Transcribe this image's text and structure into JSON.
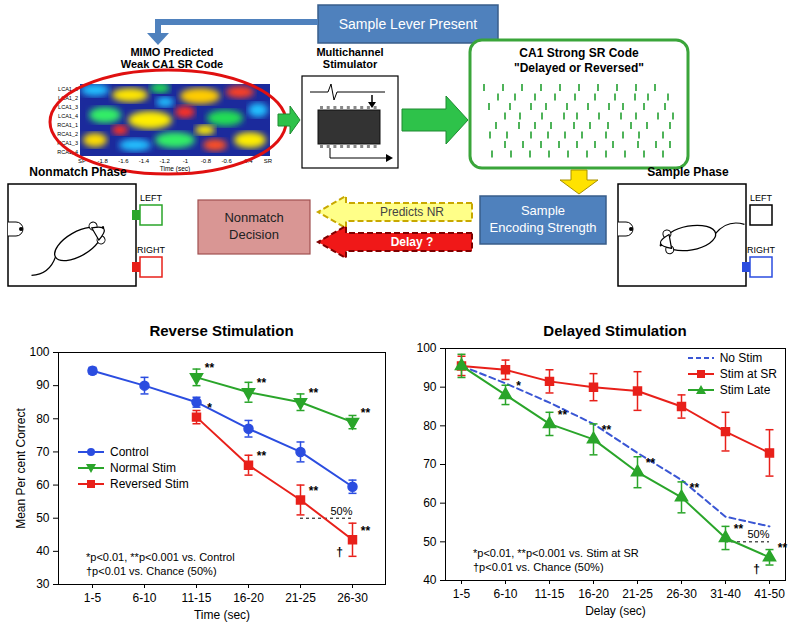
{
  "diagram": {
    "sample_lever": "Sample Lever Present",
    "heatmap": {
      "title_lines": [
        "MIMO Predicted",
        "Weak CA1 SR Code"
      ],
      "row_labels": [
        "LCA1_1",
        "LCA1_2",
        "LCA1_3",
        "LCA1_4",
        "RCA1_1",
        "RCA1_2",
        "RCA1_3",
        "RCA1_4"
      ],
      "x_labels": [
        "SP",
        "-1.8",
        "-1.6",
        "-1.4",
        "-1.2",
        "-1",
        "-0.8",
        "-0.6",
        "-0.4",
        "SR"
      ],
      "x_axis_label": "Time (sec)"
    },
    "stimulator_lines": [
      "Multichannel",
      "Stimulator"
    ],
    "strong_code_lines": [
      "CA1 Strong  SR Code",
      "\"Delayed or Reversed\""
    ],
    "encoding_lines": [
      "Sample",
      "Encoding Strength"
    ],
    "arrows": [
      "Predicts NR",
      "Delay ?"
    ],
    "decision_lines": [
      "Nonmatch",
      "Decision"
    ],
    "nonmatch_phase": {
      "title": "Nonmatch Phase",
      "levers": [
        "LEFT",
        "RIGHT"
      ]
    },
    "sample_phase": {
      "title": "Sample Phase",
      "levers": [
        "LEFT",
        "RIGHT"
      ]
    }
  },
  "chart_data": [
    {
      "type": "line",
      "title": "Reverse Stimulation",
      "x_label": "Time (sec)",
      "y_label": "Mean Per cent Correct",
      "categories": [
        "1-5",
        "6-10",
        "11-15",
        "16-20",
        "21-25",
        "26-30"
      ],
      "ylim": [
        30,
        100
      ],
      "yticks": [
        30,
        40,
        50,
        60,
        70,
        80,
        90,
        100
      ],
      "legend": "center left",
      "series": [
        {
          "name": "Control",
          "color": "#2b4de0",
          "marker": "circle",
          "line_style": "solid",
          "values": [
            94.5,
            90,
            85,
            77,
            70,
            59.5
          ],
          "errors": [
            1,
            2.5,
            1.5,
            2.5,
            3,
            2
          ]
        },
        {
          "name": "Normal Stim",
          "color": "#2aa52a",
          "marker": "triangle-down",
          "line_style": "solid",
          "values": [
            null,
            null,
            92.5,
            88,
            85,
            79
          ],
          "errors": [
            null,
            null,
            2.5,
            3,
            2.5,
            2
          ],
          "significance": [
            null,
            null,
            "**",
            "**",
            "**",
            "**"
          ]
        },
        {
          "name": "Reversed Stim",
          "color": "#e8201a",
          "marker": "square",
          "line_style": "solid",
          "values": [
            null,
            null,
            80.5,
            66,
            55.5,
            43.5
          ],
          "errors": [
            null,
            null,
            2,
            3,
            4.5,
            5
          ],
          "significance": [
            null,
            null,
            "*",
            "**",
            "**",
            "**"
          ],
          "chance": [
            null,
            null,
            null,
            null,
            null,
            "†"
          ]
        }
      ],
      "reference": {
        "value": 50,
        "label": "50%"
      },
      "footnotes": [
        "*p<0.01, **p<0.001 vs. Control",
        "†p<0.01 vs. Chance (50%)"
      ]
    },
    {
      "type": "line",
      "title": "Delayed Stimulation",
      "x_label": "Delay (sec)",
      "categories": [
        "1-5",
        "6-10",
        "11-15",
        "16-20",
        "21-25",
        "26-30",
        "31-40",
        "41-50"
      ],
      "ylim": [
        40,
        100
      ],
      "yticks": [
        40,
        50,
        60,
        70,
        80,
        90,
        100
      ],
      "legend": "upper right",
      "series": [
        {
          "name": "No Stim",
          "color": "#3a56d4",
          "marker": "none",
          "line_style": "dashed",
          "values": [
            95.5,
            91,
            86,
            80.5,
            73,
            66,
            56.5,
            54
          ]
        },
        {
          "name": "Stim at SR",
          "color": "#e8201a",
          "marker": "square",
          "line_style": "solid",
          "values": [
            95.5,
            94.5,
            91.5,
            90,
            89,
            85,
            78.5,
            73
          ],
          "errors": [
            2.5,
            2.5,
            3,
            3.5,
            5,
            3,
            5,
            6
          ]
        },
        {
          "name": "Stim Late",
          "color": "#2aa52a",
          "marker": "triangle",
          "line_style": "solid",
          "values": [
            95.5,
            88,
            80.5,
            76.5,
            68,
            61.5,
            51,
            46
          ],
          "errors": [
            3,
            2.5,
            3,
            4,
            4,
            4,
            3,
            2
          ],
          "significance": [
            null,
            "*",
            "**",
            "**",
            "**",
            "**",
            "**",
            "**"
          ],
          "chance": [
            null,
            null,
            null,
            null,
            null,
            null,
            null,
            "†"
          ]
        }
      ],
      "reference": {
        "value": 50,
        "label": "50%"
      },
      "footnotes": [
        "*p<0.01, **p<0.001 vs. Stim at SR",
        "†p<0.01 vs. Chance (50%)"
      ]
    }
  ]
}
